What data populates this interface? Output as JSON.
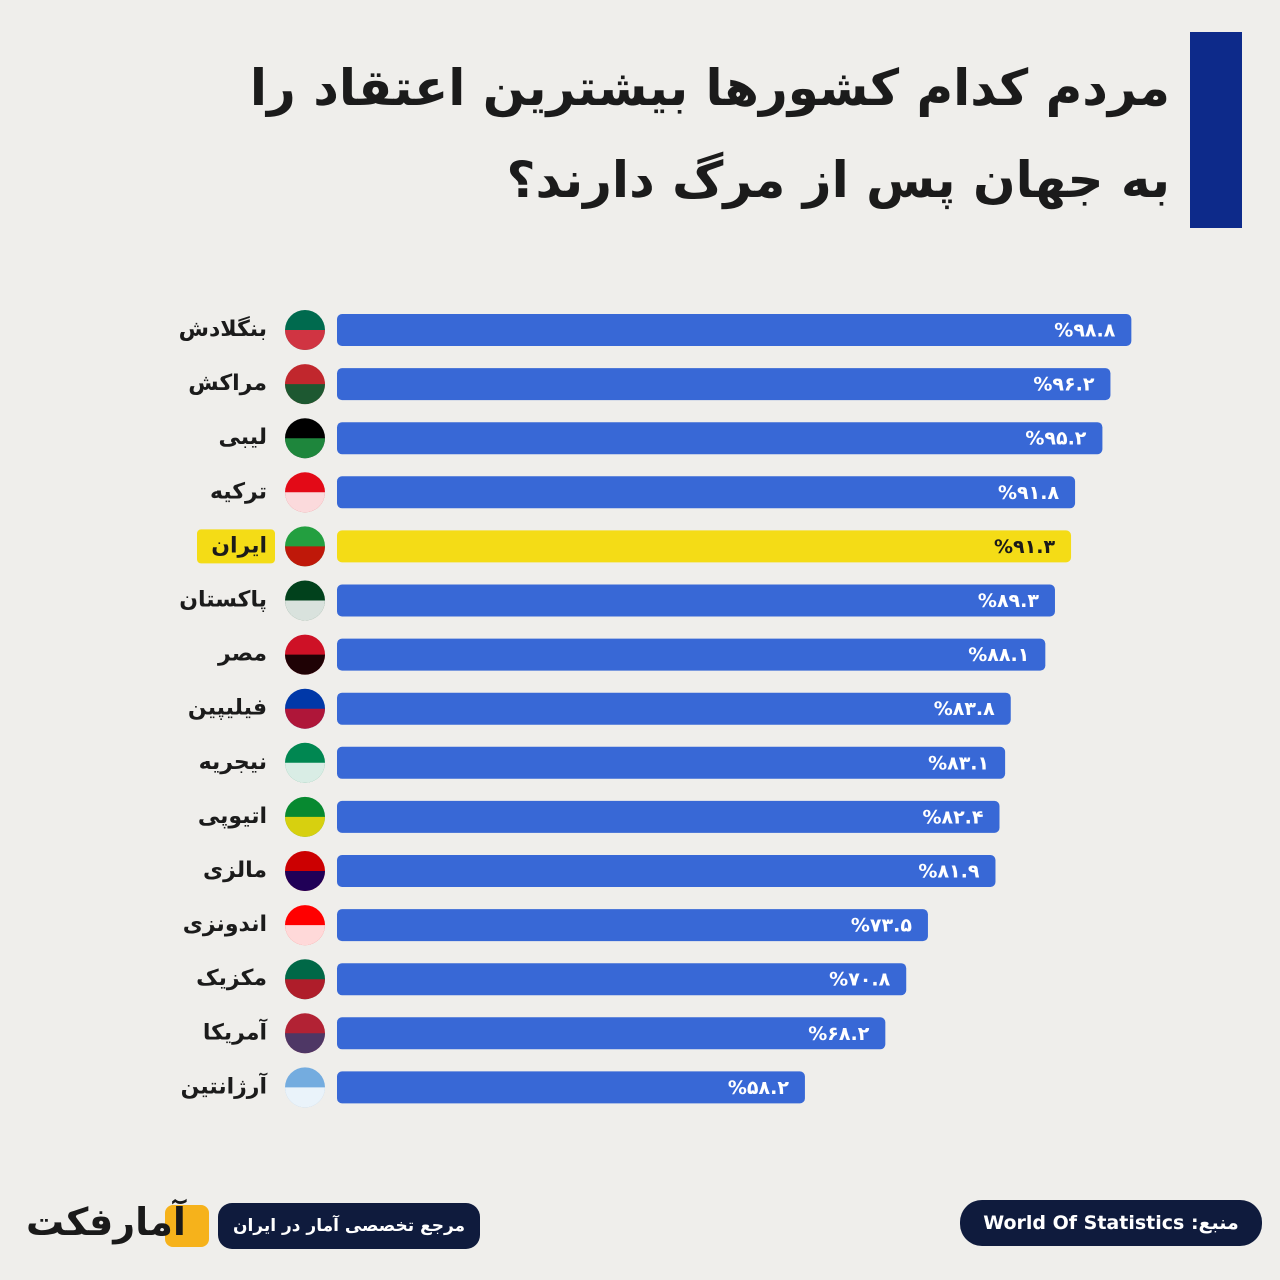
{
  "chart_data": {
    "type": "bar",
    "orientation": "horizontal",
    "title": [
      "مردم کدام کشورها بیشترین اعتقاد را",
      "به جهان پس از مرگ دارند؟"
    ],
    "categories": [
      "بنگلادش",
      "مراکش",
      "لیبی",
      "ترکیه",
      "ایران",
      "پاکستان",
      "مصر",
      "فیلیپین",
      "نیجریه",
      "اتیوپی",
      "مالزی",
      "اندونزی",
      "مکزیک",
      "آمریکا",
      "آرژانتین"
    ],
    "values": [
      98.8,
      96.2,
      95.2,
      91.8,
      91.3,
      89.3,
      88.1,
      83.8,
      83.1,
      82.4,
      81.9,
      73.5,
      70.8,
      68.2,
      58.2
    ],
    "value_labels": [
      "%۹۸.۸",
      "%۹۶.۲",
      "%۹۵.۲",
      "%۹۱.۸",
      "%۹۱.۳",
      "%۸۹.۳",
      "%۸۸.۱",
      "%۸۳.۸",
      "%۸۳.۱",
      "%۸۲.۴",
      "%۸۱.۹",
      "%۷۳.۵",
      "%۷۰.۸",
      "%۶۸.۲",
      "%۵۸.۲"
    ],
    "colors": [
      "#3868d6",
      "#3868d6",
      "#3868d6",
      "#3868d6",
      "#f4dc16",
      "#3868d6",
      "#3868d6",
      "#3868d6",
      "#3868d6",
      "#3868d6",
      "#3868d6",
      "#3868d6",
      "#3868d6",
      "#3868d6",
      "#3868d6"
    ],
    "xlim": [
      0,
      100
    ],
    "source": "منبع: World Of Statistics",
    "tagline": "مرجع تخصصی آمار در ایران",
    "brand": "آمارفکت"
  }
}
